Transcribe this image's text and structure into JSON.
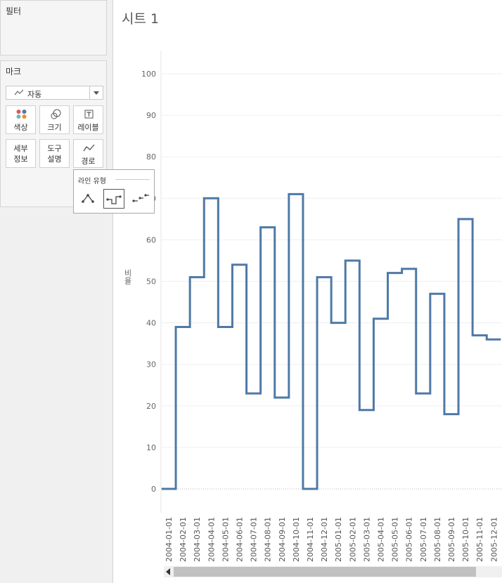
{
  "filters": {
    "title": "필터"
  },
  "marks": {
    "title": "마크",
    "mark_type": "자동",
    "buttons": {
      "color": "색상",
      "size": "크기",
      "label": "레이블",
      "detail": [
        "세부",
        "정보"
      ],
      "tooltip": [
        "도구",
        "설명"
      ],
      "path": "경로"
    }
  },
  "line_popup": {
    "title": "라인 유형",
    "options": [
      "linear",
      "step",
      "jump"
    ],
    "selected": "step"
  },
  "sheet": {
    "title": "시트 1"
  },
  "chart_data": {
    "type": "line",
    "line_style": "step",
    "color": "#4e79a7",
    "ylabel": "비율",
    "ylim": [
      -5,
      105
    ],
    "yticks": [
      0,
      10,
      20,
      30,
      40,
      50,
      60,
      70,
      80,
      90,
      100
    ],
    "ytick_labels": [
      "0",
      "10",
      "20",
      "30",
      "40",
      "50",
      "60",
      "70",
      "80",
      "90",
      "100"
    ],
    "grid": true,
    "categories": [
      "2004-01-01",
      "2004-02-01",
      "2004-03-01",
      "2004-04-01",
      "2004-05-01",
      "2004-06-01",
      "2004-07-01",
      "2004-08-01",
      "2004-09-01",
      "2004-10-01",
      "2004-11-01",
      "2004-12-01",
      "2005-01-01",
      "2005-02-01",
      "2005-03-01",
      "2005-04-01",
      "2005-05-01",
      "2005-06-01",
      "2005-07-01",
      "2005-08-01",
      "2005-09-01",
      "2005-10-01",
      "2005-11-01",
      "2005-12-01"
    ],
    "values": [
      0,
      39,
      51,
      70,
      39,
      54,
      23,
      63,
      22,
      71,
      0,
      51,
      40,
      55,
      19,
      41,
      52,
      53,
      23,
      47,
      18,
      65,
      37,
      36
    ]
  }
}
